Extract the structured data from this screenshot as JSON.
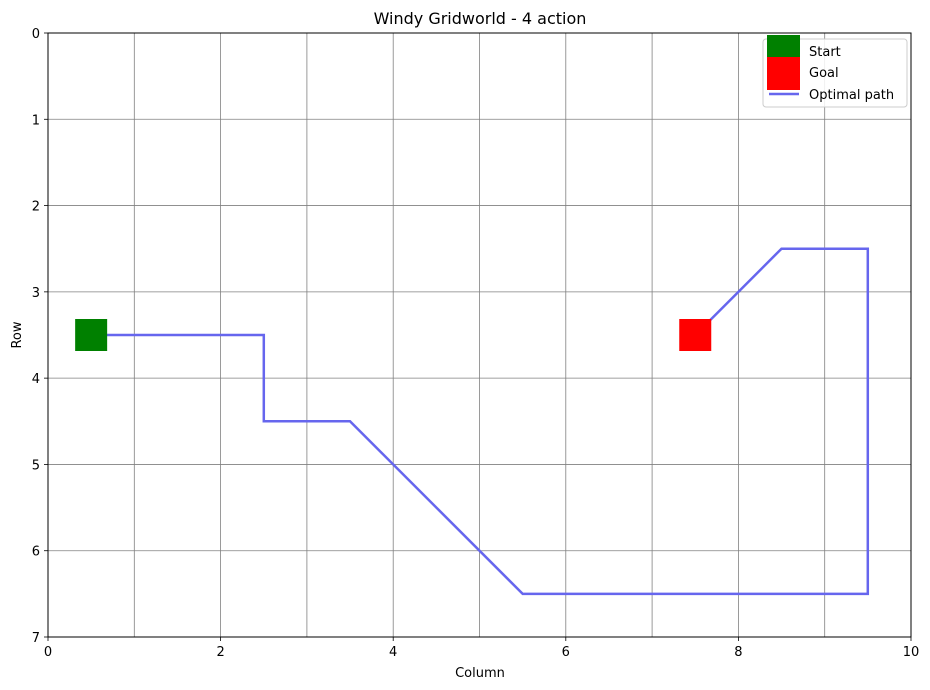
{
  "chart_data": {
    "type": "line",
    "title": "Windy Gridworld - 4 action",
    "xlabel": "Column",
    "ylabel": "Row",
    "xlim": [
      0,
      10
    ],
    "ylim": [
      0,
      7
    ],
    "y_inverted": true,
    "grid": true,
    "legend_position": "top-right",
    "x_ticks": [
      "0",
      "2",
      "4",
      "6",
      "8",
      "10"
    ],
    "y_ticks": [
      "0",
      "1",
      "2",
      "3",
      "4",
      "5",
      "6",
      "7"
    ],
    "start": {
      "label": "Start",
      "x": 0.5,
      "y": 3.5,
      "color": "#008000"
    },
    "goal": {
      "label": "Goal",
      "x": 7.5,
      "y": 3.5,
      "color": "#ff0000"
    },
    "series": [
      {
        "name": "Optimal path",
        "color": "#6666ee",
        "x": [
          0.5,
          1.5,
          2.5,
          2.5,
          3.5,
          4.5,
          5.5,
          6.5,
          7.5,
          8.5,
          9.5,
          9.5,
          9.5,
          9.5,
          9.5,
          8.5,
          7.5
        ],
        "y": [
          3.5,
          3.5,
          3.5,
          4.5,
          4.5,
          5.5,
          6.5,
          6.5,
          6.5,
          6.5,
          6.5,
          5.5,
          4.5,
          3.5,
          2.5,
          2.5,
          3.5
        ]
      }
    ]
  }
}
